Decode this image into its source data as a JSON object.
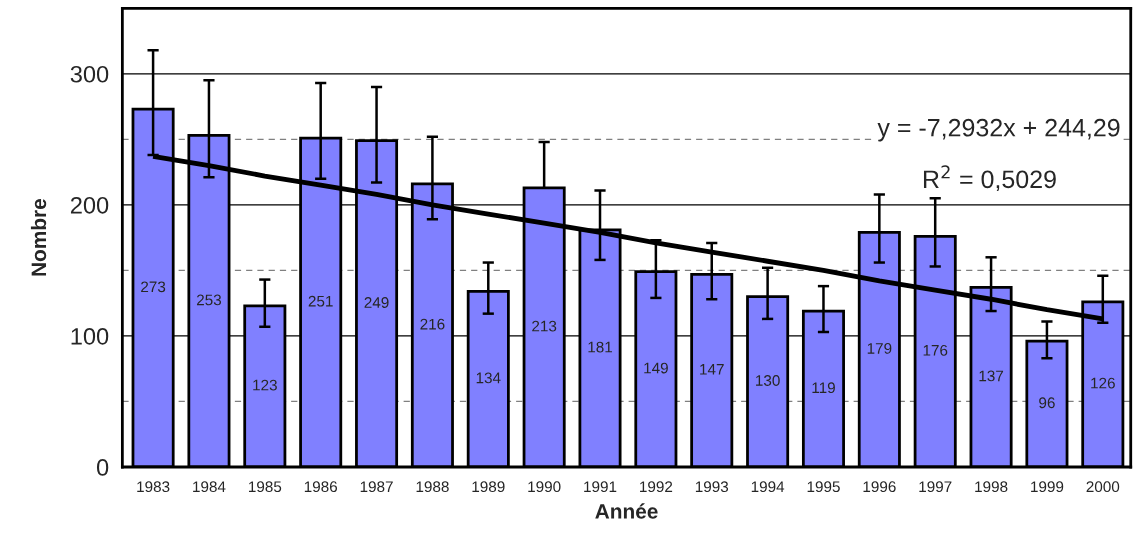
{
  "chart_data": {
    "type": "bar",
    "xlabel": "Année",
    "ylabel": "Nombre",
    "categories": [
      "1983",
      "1984",
      "1985",
      "1986",
      "1987",
      "1988",
      "1989",
      "1990",
      "1991",
      "1992",
      "1993",
      "1994",
      "1995",
      "1996",
      "1997",
      "1998",
      "1999",
      "2000"
    ],
    "series": [
      {
        "color": "#8080ff",
        "values": [
          273,
          253,
          123,
          251,
          249,
          216,
          134,
          213,
          181,
          149,
          147,
          130,
          119,
          179,
          176,
          137,
          96,
          126
        ],
        "value_labels": [
          "273",
          "253",
          "123",
          "251",
          "249",
          "216",
          "134",
          "213",
          "181",
          "149",
          "147",
          "130",
          "119",
          "179",
          "176",
          "137",
          "96",
          "126"
        ],
        "errors": [
          [
            238,
            318
          ],
          [
            221,
            295
          ],
          [
            107,
            143
          ],
          [
            220,
            293
          ],
          [
            217,
            290
          ],
          [
            189,
            252
          ],
          [
            117,
            156
          ],
          [
            213,
            248
          ],
          [
            158,
            211
          ],
          [
            129,
            173
          ],
          [
            128,
            171
          ],
          [
            113,
            152
          ],
          [
            103,
            138
          ],
          [
            156,
            208
          ],
          [
            153,
            205
          ],
          [
            119,
            160
          ],
          [
            83,
            111
          ],
          [
            110,
            146
          ]
        ]
      },
      {
        "type": "line",
        "color": "#000000",
        "values": [
          237,
          230,
          222,
          215,
          208,
          200,
          193,
          186,
          179,
          171,
          164,
          157,
          150,
          142,
          135,
          128,
          120,
          113
        ]
      }
    ],
    "ylim": [
      0,
      350
    ],
    "yticks": [
      0,
      {
        "value": 50,
        "label": null
      },
      100,
      {
        "value": 150,
        "label": null
      },
      200,
      {
        "value": 250,
        "label": null
      },
      300
    ],
    "grid": "y",
    "annotations": [
      "y = -7,2932x + 244,29",
      "R$^{2}$ = 0,5029"
    ]
  }
}
